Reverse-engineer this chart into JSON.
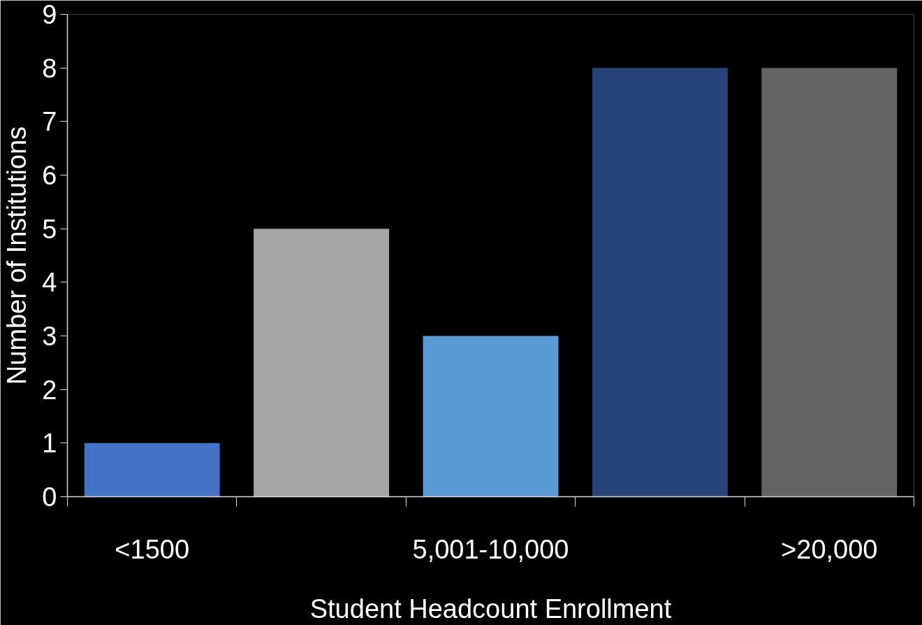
{
  "chart_data": {
    "type": "bar",
    "xlabel": "Student Headcount Enrollment",
    "ylabel": "Number of Institutions",
    "categories": [
      "<1500",
      null,
      "5,001-10,000",
      null,
      ">20,000"
    ],
    "values": [
      1,
      5,
      3,
      8,
      8
    ],
    "colors": [
      "#4472c4",
      "#a5a5a5",
      "#5b9bd5",
      "#264478",
      "#636363"
    ],
    "ylim": [
      0,
      9
    ],
    "yticks": [
      0,
      1,
      2,
      3,
      4,
      5,
      6,
      7,
      8,
      9
    ],
    "grid": false
  }
}
